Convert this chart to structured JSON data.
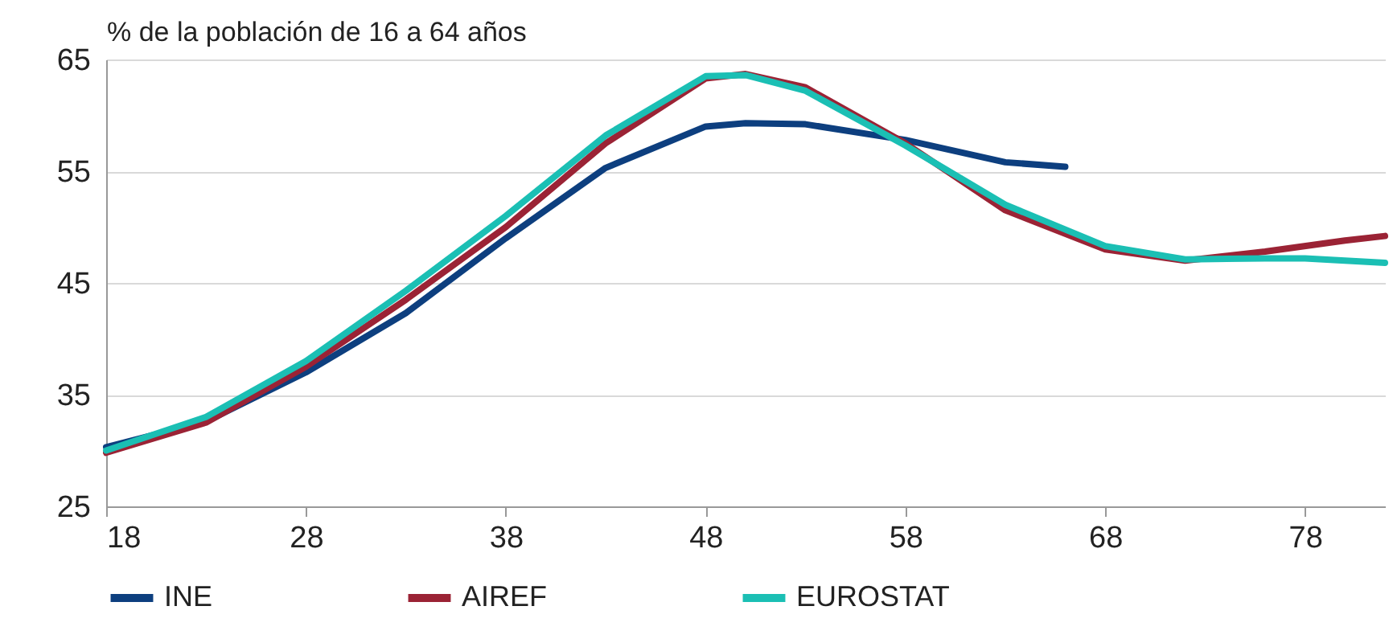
{
  "chart_data": {
    "type": "line",
    "ylabel": "% de la población de 16 a 64 años",
    "xlim": [
      18,
      82
    ],
    "xticks": [
      18,
      28,
      38,
      48,
      58,
      68,
      78
    ],
    "ylim": [
      25,
      65
    ],
    "yticks": [
      25,
      35,
      45,
      55,
      65
    ],
    "grid": "y",
    "legend": "bottom",
    "line_style": "solid",
    "series": [
      {
        "name": "INE",
        "color": "#0d3f7f",
        "x": [
          18,
          23,
          28,
          33,
          38,
          43,
          48,
          50,
          53,
          58,
          63,
          66
        ],
        "values": [
          30.3,
          32.6,
          37,
          42.3,
          49,
          55.3,
          59,
          59.3,
          59.2,
          57.8,
          55.8,
          55.4
        ]
      },
      {
        "name": "AIREF",
        "color": "#9b2335",
        "x": [
          18,
          23,
          28,
          33,
          38,
          43,
          48,
          50,
          53,
          58,
          63,
          68,
          72,
          76,
          80,
          82
        ],
        "values": [
          29.8,
          32.5,
          37.5,
          43.5,
          50,
          57.5,
          63.3,
          63.7,
          62.5,
          57.5,
          51.5,
          48,
          47,
          47.8,
          48.8,
          49.2
        ]
      },
      {
        "name": "EUROSTAT",
        "color": "#1bbfb4",
        "x": [
          18,
          23,
          28,
          33,
          38,
          43,
          48,
          50,
          53,
          58,
          63,
          68,
          72,
          76,
          78,
          82
        ],
        "values": [
          30,
          33,
          38,
          44.3,
          51,
          58.2,
          63.5,
          63.6,
          62.2,
          57.3,
          52,
          48.3,
          47.1,
          47.2,
          47.2,
          46.8
        ]
      }
    ]
  }
}
